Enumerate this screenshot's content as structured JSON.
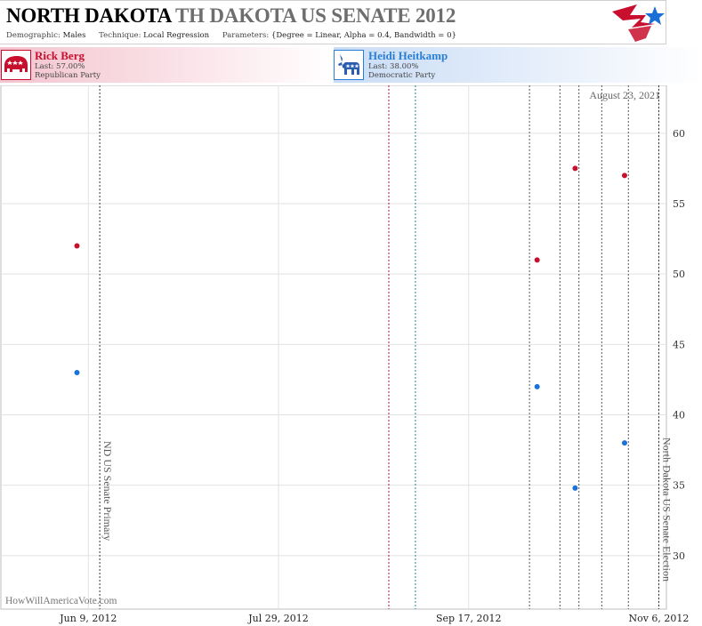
{
  "header": {
    "title_state": "NORTH DAKOTA",
    "title_race": "TH DAKOTA US SENATE 2012",
    "demographic_label": "Demographic:",
    "demographic_value": "Males",
    "technique_label": "Technique:",
    "technique_value": "Local Regression",
    "parameters_label": "Parameters:",
    "parameters_value": "{Degree = Linear, Alpha = 0.4, Bandwidth = 0}"
  },
  "candidates": [
    {
      "name": "Rick Berg",
      "last": "Last: 57.00%",
      "party": "Republican Party",
      "color": "#c8102e",
      "icon": "elephant-icon"
    },
    {
      "name": "Heidi Heitkamp",
      "last": "Last: 38.00%",
      "party": "Democratic Party",
      "color": "#2a7fd4",
      "icon": "donkey-icon"
    }
  ],
  "chart_data": {
    "type": "scatter",
    "date_stamp": "August 23, 2021",
    "credit": "HowWillAmericaVote.com",
    "x_ticks": [
      "Jun 9, 2012",
      "Jul 29, 2012",
      "Sep 17, 2012",
      "Nov 6, 2012"
    ],
    "y_ticks": [
      30,
      35,
      40,
      45,
      50,
      55,
      60
    ],
    "xlim": [
      "2012-05-17",
      "2012-11-08"
    ],
    "ylim": [
      26.2,
      63.4
    ],
    "grid": true,
    "events": [
      {
        "date": "2012-06-12",
        "label": "ND US Senate Primary"
      },
      {
        "date": "2012-11-06",
        "label": "North Dakota US Senate Election"
      }
    ],
    "convention_lines": [
      {
        "date": "2012-08-27",
        "color": "#b0123a"
      },
      {
        "date": "2012-09-03",
        "color": "#1a8a9a"
      }
    ],
    "poll_lines": [
      "2012-10-03",
      "2012-10-11",
      "2012-10-16",
      "2012-10-22",
      "2012-10-29"
    ],
    "series": [
      {
        "name": "Rick Berg",
        "color": "#c8102e",
        "points": [
          [
            "2012-06-06",
            52
          ],
          [
            "2012-10-05",
            51
          ],
          [
            "2012-10-15",
            57.5
          ],
          [
            "2012-10-28",
            57
          ]
        ]
      },
      {
        "name": "Heidi Heitkamp",
        "color": "#1a72d8",
        "points": [
          [
            "2012-06-06",
            43
          ],
          [
            "2012-10-05",
            42
          ],
          [
            "2012-10-15",
            34.8
          ],
          [
            "2012-10-28",
            38
          ]
        ]
      }
    ]
  }
}
